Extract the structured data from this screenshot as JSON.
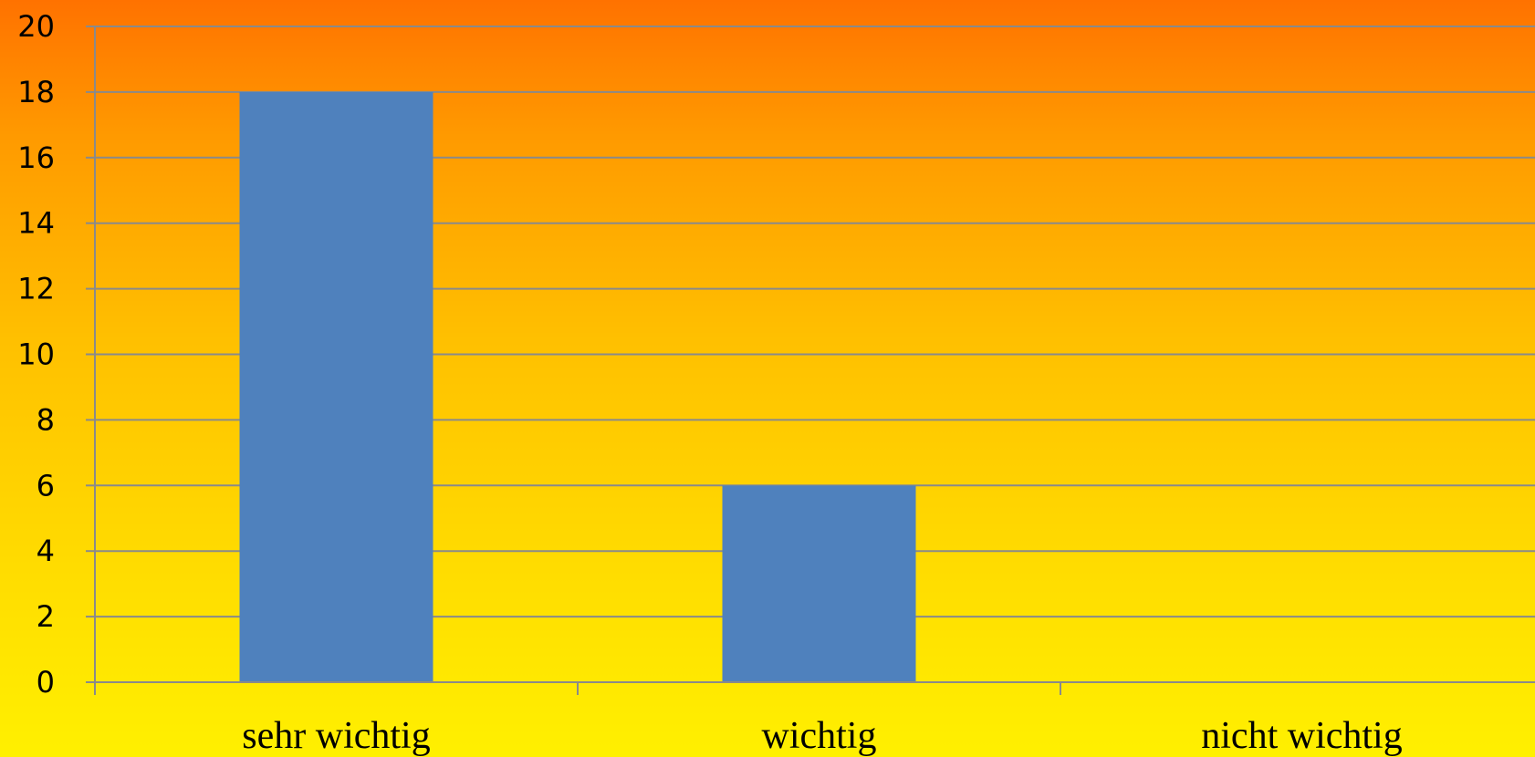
{
  "chart_data": {
    "type": "bar",
    "categories": [
      "sehr wichtig",
      "wichtig",
      "nicht wichtig"
    ],
    "values": [
      18,
      6,
      0
    ],
    "ylim": [
      0,
      20
    ],
    "yticks": [
      0,
      2,
      4,
      6,
      8,
      10,
      12,
      14,
      16,
      18,
      20
    ],
    "grid": true,
    "colors": {
      "bar": "#4f81bd",
      "gridline": "#8a8a8a",
      "axis": "#8a8a8a",
      "text": "#000000"
    }
  }
}
